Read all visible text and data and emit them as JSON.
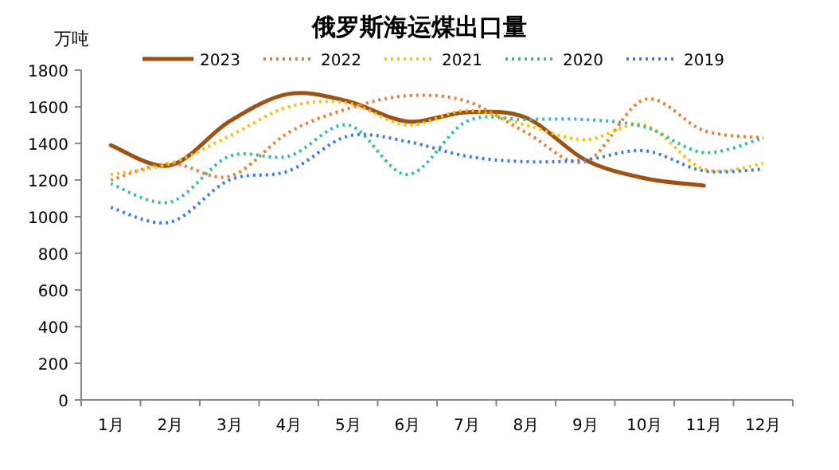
{
  "chart_data": {
    "type": "line",
    "title": "俄罗斯海运煤出口量",
    "ylabel": "万吨",
    "legend": "top",
    "categories": [
      "1月",
      "2月",
      "3月",
      "4月",
      "5月",
      "6月",
      "7月",
      "8月",
      "9月",
      "10月",
      "11月",
      "12月"
    ],
    "ylim": [
      0,
      1800
    ],
    "yticks": [
      0,
      200,
      400,
      600,
      800,
      1000,
      1200,
      1400,
      1600,
      1800
    ],
    "series": [
      {
        "name": "2023",
        "color": "#a0510f",
        "line_style": "solid",
        "values": [
          1390,
          1280,
          1520,
          1670,
          1630,
          1520,
          1570,
          1540,
          1310,
          1210,
          1170,
          null
        ]
      },
      {
        "name": "2022",
        "color": "#ed7d31",
        "line_style": "dotted",
        "values": [
          1200,
          1290,
          1220,
          1460,
          1590,
          1660,
          1630,
          1460,
          1300,
          1640,
          1470,
          1430
        ]
      },
      {
        "name": "2021",
        "color": "#ffc000",
        "line_style": "dotted",
        "values": [
          1230,
          1290,
          1440,
          1600,
          1620,
          1500,
          1580,
          1500,
          1420,
          1500,
          1260,
          1290
        ]
      },
      {
        "name": "2020",
        "color": "#2ebfae",
        "line_style": "dotted",
        "values": [
          1180,
          1080,
          1330,
          1330,
          1500,
          1230,
          1520,
          1530,
          1530,
          1490,
          1350,
          1430
        ]
      },
      {
        "name": "2019",
        "color": "#3b7df0",
        "line_style": "dotted",
        "values": [
          1050,
          970,
          1200,
          1250,
          1440,
          1410,
          1330,
          1300,
          1310,
          1360,
          1250,
          1260
        ]
      }
    ]
  }
}
